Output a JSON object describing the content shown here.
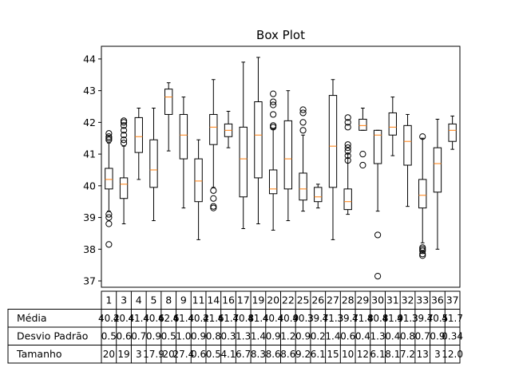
{
  "chart_data": {
    "type": "box",
    "title": "Box Plot",
    "xlabel": "",
    "ylabel": "",
    "ylim": [
      36.8,
      44.4
    ],
    "yticks": [
      37,
      38,
      39,
      40,
      41,
      42,
      43,
      44
    ],
    "grid": false,
    "colors": {
      "median": "#ff7f0e",
      "box": "#000000",
      "flier": "#000000"
    },
    "categories": [
      "1",
      "3",
      "4",
      "5",
      "8",
      "9",
      "11",
      "14",
      "16",
      "17",
      "19",
      "20",
      "22",
      "25",
      "26",
      "27",
      "28",
      "29",
      "30",
      "31",
      "32",
      "33",
      "36",
      "37"
    ],
    "boxes": [
      {
        "label": "1",
        "whislo": 39.2,
        "q1": 39.9,
        "med": 40.2,
        "q3": 40.55,
        "whishi": 41.35,
        "fliers": [
          38.15,
          38.8,
          39.0,
          39.1,
          41.45,
          41.5,
          41.55,
          41.65
        ]
      },
      {
        "label": "3",
        "whislo": 38.8,
        "q1": 39.6,
        "med": 40.05,
        "q3": 40.25,
        "whishi": 41.25,
        "fliers": [
          41.35,
          41.45,
          41.6,
          41.75,
          41.9,
          42.0,
          42.05
        ]
      },
      {
        "label": "4",
        "whislo": 40.2,
        "q1": 41.05,
        "med": 41.55,
        "q3": 42.15,
        "whishi": 42.45,
        "fliers": []
      },
      {
        "label": "5",
        "whislo": 38.9,
        "q1": 39.95,
        "med": 40.5,
        "q3": 41.45,
        "whishi": 42.45,
        "fliers": []
      },
      {
        "label": "8",
        "whislo": 41.1,
        "q1": 42.25,
        "med": 42.8,
        "q3": 43.05,
        "whishi": 43.25,
        "fliers": []
      },
      {
        "label": "9",
        "whislo": 39.3,
        "q1": 40.85,
        "med": 41.6,
        "q3": 42.25,
        "whishi": 42.8,
        "fliers": []
      },
      {
        "label": "11",
        "whislo": 38.3,
        "q1": 39.5,
        "med": 40.15,
        "q3": 40.85,
        "whishi": 41.45,
        "fliers": []
      },
      {
        "label": "14",
        "whislo": 39.95,
        "q1": 41.3,
        "med": 41.85,
        "q3": 42.25,
        "whishi": 43.35,
        "fliers": [
          39.3,
          39.35,
          39.6,
          39.85
        ]
      },
      {
        "label": "16",
        "whislo": 41.2,
        "q1": 41.55,
        "med": 41.75,
        "q3": 41.95,
        "whishi": 42.35,
        "fliers": []
      },
      {
        "label": "17",
        "whislo": 38.65,
        "q1": 39.65,
        "med": 40.85,
        "q3": 41.85,
        "whishi": 43.9,
        "fliers": []
      },
      {
        "label": "19",
        "whislo": 38.8,
        "q1": 40.25,
        "med": 41.6,
        "q3": 42.65,
        "whishi": 44.05,
        "fliers": []
      },
      {
        "label": "20",
        "whislo": 38.6,
        "q1": 39.75,
        "med": 39.9,
        "q3": 40.5,
        "whishi": 41.8,
        "fliers": [
          41.85,
          41.9,
          42.25,
          42.55,
          42.65,
          42.9
        ]
      },
      {
        "label": "22",
        "whislo": 38.9,
        "q1": 39.9,
        "med": 40.85,
        "q3": 42.05,
        "whishi": 43.0,
        "fliers": []
      },
      {
        "label": "25",
        "whislo": 39.2,
        "q1": 39.55,
        "med": 39.9,
        "q3": 40.4,
        "whishi": 41.6,
        "fliers": [
          41.75,
          42.0,
          42.3,
          42.4
        ]
      },
      {
        "label": "26",
        "whislo": 39.3,
        "q1": 39.5,
        "med": 39.65,
        "q3": 39.95,
        "whishi": 40.05,
        "fliers": []
      },
      {
        "label": "27",
        "whislo": 38.3,
        "q1": 39.95,
        "med": 41.25,
        "q3": 42.85,
        "whishi": 43.35,
        "fliers": []
      },
      {
        "label": "28",
        "whislo": 39.1,
        "q1": 39.25,
        "med": 39.5,
        "q3": 39.9,
        "whishi": 41.0,
        "fliers": [
          40.8,
          40.95,
          41.1,
          41.2,
          41.3,
          41.85,
          42.0,
          42.15
        ]
      },
      {
        "label": "29",
        "whislo": 41.75,
        "q1": 41.75,
        "med": 41.9,
        "q3": 42.1,
        "whishi": 42.45,
        "fliers": [
          40.65,
          41.0
        ]
      },
      {
        "label": "30",
        "whislo": 39.2,
        "q1": 40.7,
        "med": 41.6,
        "q3": 41.75,
        "whishi": 41.75,
        "fliers": [
          37.15,
          38.45
        ]
      },
      {
        "label": "31",
        "whislo": 40.95,
        "q1": 41.6,
        "med": 41.85,
        "q3": 42.3,
        "whishi": 42.8,
        "fliers": []
      },
      {
        "label": "32",
        "whislo": 39.35,
        "q1": 40.65,
        "med": 41.4,
        "q3": 41.9,
        "whishi": 42.25,
        "fliers": []
      },
      {
        "label": "33",
        "whislo": 38.2,
        "q1": 39.3,
        "med": 39.7,
        "q3": 40.2,
        "whishi": 41.5,
        "fliers": [
          37.8,
          37.85,
          37.95,
          38.0,
          38.05,
          41.55
        ]
      },
      {
        "label": "36",
        "whislo": 38.0,
        "q1": 39.8,
        "med": 40.7,
        "q3": 41.2,
        "whishi": 42.1,
        "fliers": []
      },
      {
        "label": "37",
        "whislo": 41.15,
        "q1": 41.4,
        "med": 41.75,
        "q3": 41.95,
        "whishi": 42.2,
        "fliers": []
      }
    ],
    "table": {
      "row_labels": [
        "Média",
        "Desvio Padrão",
        "Tamanho"
      ],
      "col_labels": [
        "1",
        "3",
        "4",
        "5",
        "8",
        "9",
        "11",
        "14",
        "16",
        "17",
        "19",
        "20",
        "22",
        "25",
        "26",
        "27",
        "28",
        "29",
        "30",
        "31",
        "32",
        "33",
        "36",
        "37"
      ],
      "cells": [
        [
          "40.2",
          "40.4",
          "41.4",
          "40.6",
          "42.6",
          "41.4",
          "40.2",
          "41.6",
          "41.7",
          "40.8",
          "41.4",
          "40.4",
          "40.9",
          "40.3",
          "39.7",
          "41.3",
          "39.7",
          "41.8",
          "40.8",
          "41.9",
          "41.3",
          "39.7",
          "40.5",
          "41.7"
        ],
        [
          "0.5",
          "0.6",
          "0.7",
          "0.9",
          "0.5",
          "1.0",
          "0.9",
          "0.8",
          "0.3",
          "1.3",
          "1.4",
          "0.9",
          "1.2",
          "0.9",
          "0.2",
          "1.4",
          "0.6",
          "0.4",
          "1.3",
          "0.4",
          "0.8",
          "0.7",
          "0.9",
          "0.34"
        ],
        [
          "20",
          "19",
          "3",
          "17.9",
          "20",
          "27.4",
          "0.6",
          "0.5",
          "4.1",
          "6.7",
          "8.3",
          "8.6",
          "8.6",
          "9.2",
          "6.1",
          "15",
          "10",
          "12",
          "6.1",
          "8.1",
          "7.2",
          "13",
          "3",
          "12.0"
        ]
      ]
    }
  }
}
